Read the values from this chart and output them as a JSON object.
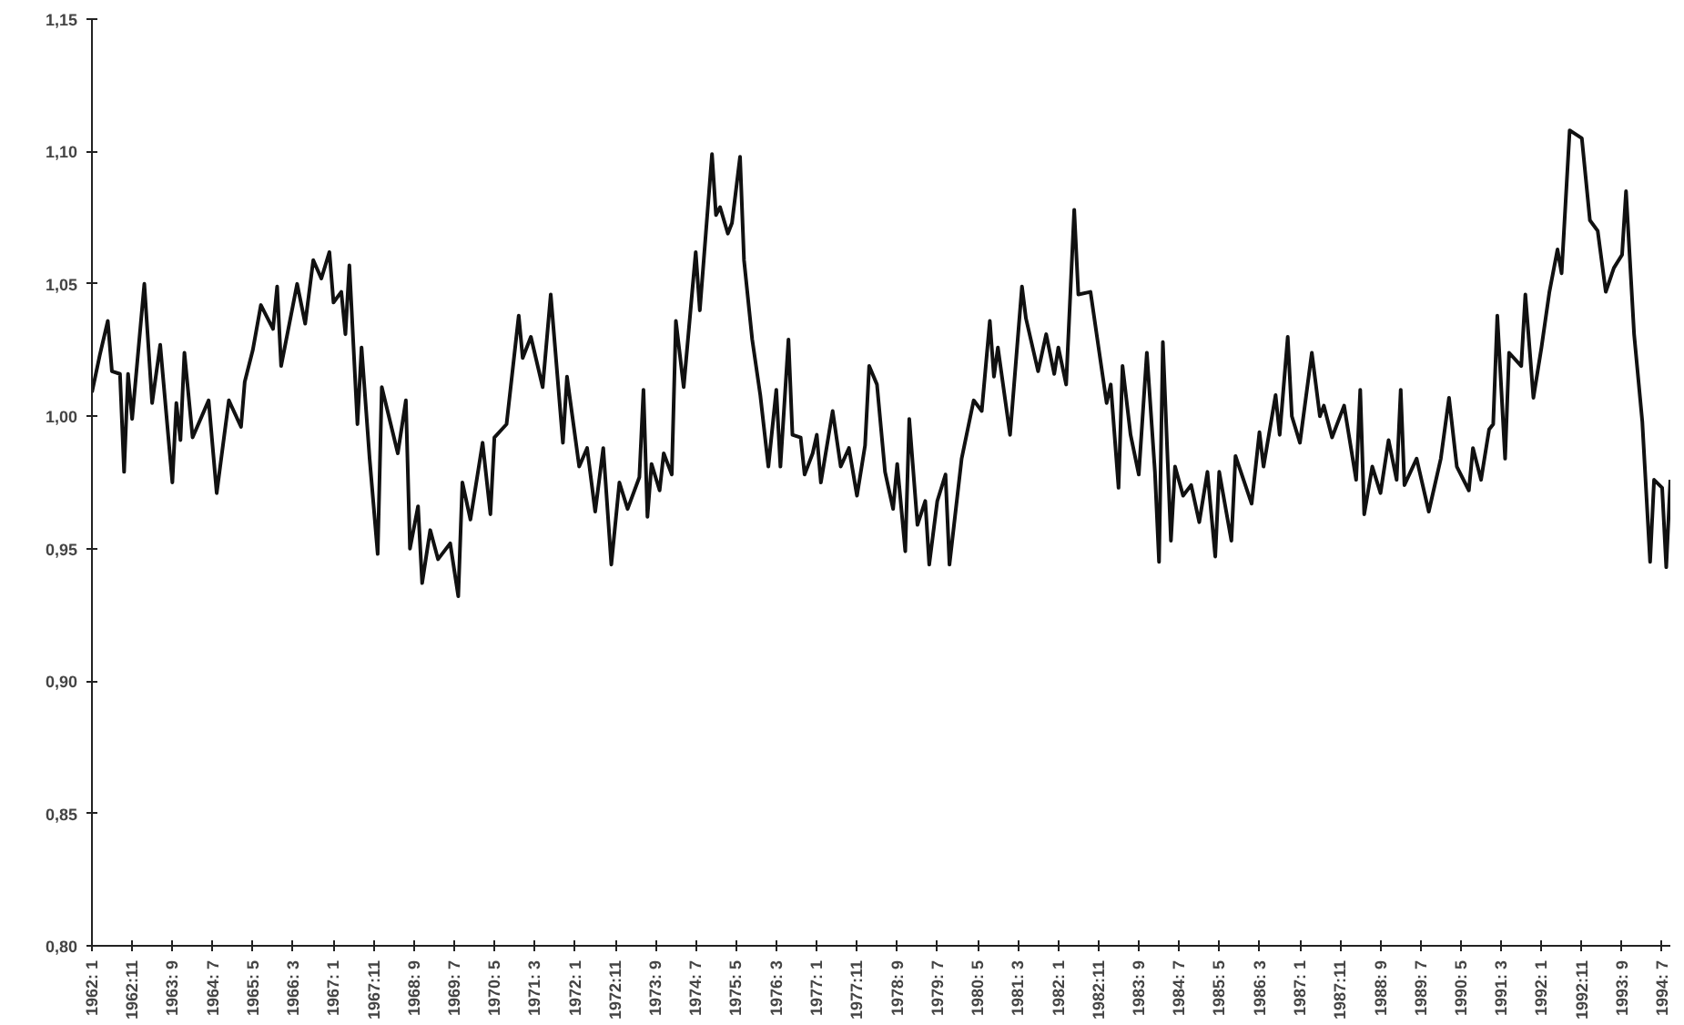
{
  "chart_data": {
    "type": "line",
    "grid": false,
    "x": [
      "1962-01",
      "1962-03",
      "1962-05",
      "1962-06",
      "1962-08",
      "1962-09",
      "1962-10",
      "1962-11",
      "1963-02",
      "1963-04",
      "1963-06",
      "1963-09",
      "1963-10",
      "1963-11",
      "1963-12",
      "1964-02",
      "1964-06",
      "1964-08",
      "1964-11",
      "1965-02",
      "1965-03",
      "1965-05",
      "1965-07",
      "1965-10",
      "1965-11",
      "1965-12",
      "1966-04",
      "1966-06",
      "1966-08",
      "1966-10",
      "1966-12",
      "1967-01",
      "1967-03",
      "1967-04",
      "1967-05",
      "1967-07",
      "1967-08",
      "1967-10",
      "1967-12",
      "1968-01",
      "1968-05",
      "1968-07",
      "1968-08",
      "1968-10",
      "1968-11",
      "1969-01",
      "1969-03",
      "1969-06",
      "1969-08",
      "1969-09",
      "1969-11",
      "1970-02",
      "1970-04",
      "1970-05",
      "1970-08",
      "1970-11",
      "1970-12",
      "1971-02",
      "1971-05",
      "1971-07",
      "1971-10",
      "1971-11",
      "1972-02",
      "1972-04",
      "1972-06",
      "1972-08",
      "1972-10",
      "1972-12",
      "1973-02",
      "1973-05",
      "1973-06",
      "1973-07",
      "1973-08",
      "1973-10",
      "1973-11",
      "1974-01",
      "1974-02",
      "1974-04",
      "1974-07",
      "1974-08",
      "1974-11",
      "1974-12",
      "1975-01",
      "1975-03",
      "1975-04",
      "1975-06",
      "1975-07",
      "1975-09",
      "1975-11",
      "1976-01",
      "1976-03",
      "1976-04",
      "1976-06",
      "1976-07",
      "1976-09",
      "1976-10",
      "1976-12",
      "1977-01",
      "1977-02",
      "1977-05",
      "1977-07",
      "1977-09",
      "1977-11",
      "1978-01",
      "1978-02",
      "1978-04",
      "1978-06",
      "1978-08",
      "1978-09",
      "1978-11",
      "1978-12",
      "1979-02",
      "1979-04",
      "1979-05",
      "1979-07",
      "1979-09",
      "1979-10",
      "1980-01",
      "1980-04",
      "1980-06",
      "1980-08",
      "1980-09",
      "1980-10",
      "1981-01",
      "1981-04",
      "1981-05",
      "1981-08",
      "1981-10",
      "1981-12",
      "1982-01",
      "1982-03",
      "1982-05",
      "1982-06",
      "1982-09",
      "1982-11",
      "1983-01",
      "1983-02",
      "1983-04",
      "1983-05",
      "1983-07",
      "1983-09",
      "1983-11",
      "1984-01",
      "1984-02",
      "1984-03",
      "1984-05",
      "1984-06",
      "1984-08",
      "1984-10",
      "1984-12",
      "1985-02",
      "1985-04",
      "1985-05",
      "1985-08",
      "1985-09",
      "1986-01",
      "1986-03",
      "1986-04",
      "1986-07",
      "1986-08",
      "1986-10",
      "1986-11",
      "1987-01",
      "1987-04",
      "1987-06",
      "1987-07",
      "1987-09",
      "1987-12",
      "1988-03",
      "1988-04",
      "1988-05",
      "1988-07",
      "1988-09",
      "1988-11",
      "1989-01",
      "1989-02",
      "1989-03",
      "1989-06",
      "1989-09",
      "1989-12",
      "1990-02",
      "1990-04",
      "1990-07",
      "1990-08",
      "1990-10",
      "1990-12",
      "1991-01",
      "1991-02",
      "1991-04",
      "1991-05",
      "1991-08",
      "1991-09",
      "1991-11",
      "1992-01",
      "1992-03",
      "1992-05",
      "1992-06",
      "1992-08",
      "1992-11",
      "1993-01",
      "1993-03",
      "1993-05",
      "1993-07",
      "1993-09",
      "1993-10",
      "1993-12",
      "1994-02",
      "1994-04",
      "1994-05",
      "1994-07",
      "1994-08",
      "1994-09"
    ],
    "series": [
      {
        "color": "#111111",
        "values": [
          1.009,
          1.023,
          1.036,
          1.017,
          1.016,
          0.979,
          1.016,
          0.999,
          1.05,
          1.005,
          1.027,
          0.975,
          1.005,
          0.991,
          1.024,
          0.992,
          1.006,
          0.971,
          1.006,
          0.996,
          1.013,
          1.025,
          1.042,
          1.033,
          1.049,
          1.019,
          1.05,
          1.035,
          1.059,
          1.052,
          1.062,
          1.043,
          1.047,
          1.031,
          1.057,
          0.997,
          1.026,
          0.984,
          0.948,
          1.011,
          0.986,
          1.006,
          0.95,
          0.966,
          0.937,
          0.957,
          0.946,
          0.952,
          0.932,
          0.975,
          0.961,
          0.99,
          0.963,
          0.992,
          0.997,
          1.038,
          1.022,
          1.03,
          1.011,
          1.046,
          0.99,
          1.015,
          0.981,
          0.988,
          0.964,
          0.988,
          0.944,
          0.975,
          0.965,
          0.977,
          1.01,
          0.962,
          0.982,
          0.972,
          0.986,
          0.978,
          1.036,
          1.011,
          1.062,
          1.04,
          1.099,
          1.076,
          1.079,
          1.069,
          1.073,
          1.098,
          1.059,
          1.029,
          1.008,
          0.981,
          1.01,
          0.981,
          1.029,
          0.993,
          0.992,
          0.978,
          0.986,
          0.993,
          0.975,
          1.002,
          0.981,
          0.988,
          0.97,
          0.989,
          1.019,
          1.012,
          0.979,
          0.965,
          0.982,
          0.949,
          0.999,
          0.959,
          0.968,
          0.944,
          0.968,
          0.978,
          0.944,
          0.984,
          1.006,
          1.002,
          1.036,
          1.015,
          1.026,
          0.993,
          1.049,
          1.037,
          1.017,
          1.031,
          1.016,
          1.026,
          1.012,
          1.078,
          1.046,
          1.047,
          1.026,
          1.005,
          1.012,
          0.973,
          1.019,
          0.993,
          0.978,
          1.024,
          0.979,
          0.945,
          1.028,
          0.953,
          0.981,
          0.97,
          0.974,
          0.96,
          0.979,
          0.947,
          0.979,
          0.953,
          0.985,
          0.967,
          0.994,
          0.981,
          1.008,
          0.993,
          1.03,
          1.0,
          0.99,
          1.024,
          1.0,
          1.004,
          0.992,
          1.004,
          0.976,
          1.01,
          0.963,
          0.981,
          0.971,
          0.991,
          0.976,
          1.01,
          0.974,
          0.984,
          0.964,
          0.984,
          1.007,
          0.981,
          0.972,
          0.988,
          0.976,
          0.995,
          0.997,
          1.038,
          0.984,
          1.024,
          1.019,
          1.046,
          1.007,
          1.026,
          1.047,
          1.063,
          1.054,
          1.108,
          1.105,
          1.074,
          1.07,
          1.047,
          1.056,
          1.061,
          1.085,
          1.031,
          0.998,
          0.945,
          0.976,
          0.973,
          0.943,
          0.976
        ]
      }
    ],
    "xlim": [
      "1962-01",
      "1994-09"
    ],
    "xticks": [
      {
        "value": "1962-01",
        "label": "1962: 1"
      },
      {
        "value": "1962-11",
        "label": "1962:11"
      },
      {
        "value": "1963-09",
        "label": "1963: 9"
      },
      {
        "value": "1964-07",
        "label": "1964: 7"
      },
      {
        "value": "1965-05",
        "label": "1965: 5"
      },
      {
        "value": "1966-03",
        "label": "1966: 3"
      },
      {
        "value": "1967-01",
        "label": "1967: 1"
      },
      {
        "value": "1967-11",
        "label": "1967:11"
      },
      {
        "value": "1968-09",
        "label": "1968: 9"
      },
      {
        "value": "1969-07",
        "label": "1969: 7"
      },
      {
        "value": "1970-05",
        "label": "1970: 5"
      },
      {
        "value": "1971-03",
        "label": "1971: 3"
      },
      {
        "value": "1972-01",
        "label": "1972: 1"
      },
      {
        "value": "1972-11",
        "label": "1972:11"
      },
      {
        "value": "1973-09",
        "label": "1973: 9"
      },
      {
        "value": "1974-07",
        "label": "1974: 7"
      },
      {
        "value": "1975-05",
        "label": "1975: 5"
      },
      {
        "value": "1976-03",
        "label": "1976: 3"
      },
      {
        "value": "1977-01",
        "label": "1977: 1"
      },
      {
        "value": "1977-11",
        "label": "1977:11"
      },
      {
        "value": "1978-09",
        "label": "1978: 9"
      },
      {
        "value": "1979-07",
        "label": "1979: 7"
      },
      {
        "value": "1980-05",
        "label": "1980: 5"
      },
      {
        "value": "1981-03",
        "label": "1981: 3"
      },
      {
        "value": "1982-01",
        "label": "1982: 1"
      },
      {
        "value": "1982-11",
        "label": "1982:11"
      },
      {
        "value": "1983-09",
        "label": "1983: 9"
      },
      {
        "value": "1984-07",
        "label": "1984: 7"
      },
      {
        "value": "1985-05",
        "label": "1985: 5"
      },
      {
        "value": "1986-03",
        "label": "1986: 3"
      },
      {
        "value": "1987-01",
        "label": "1987: 1"
      },
      {
        "value": "1987-11",
        "label": "1987:11"
      },
      {
        "value": "1988-09",
        "label": "1988: 9"
      },
      {
        "value": "1989-07",
        "label": "1989: 7"
      },
      {
        "value": "1990-05",
        "label": "1990: 5"
      },
      {
        "value": "1991-03",
        "label": "1991: 3"
      },
      {
        "value": "1992-01",
        "label": "1992: 1"
      },
      {
        "value": "1992-11",
        "label": "1992:11"
      },
      {
        "value": "1993-09",
        "label": "1993: 9"
      },
      {
        "value": "1994-07",
        "label": "1994: 7"
      }
    ],
    "ylim": [
      0.8,
      1.15
    ],
    "yticks": [
      {
        "value": 0.8,
        "label": "0,80"
      },
      {
        "value": 0.85,
        "label": "0,85"
      },
      {
        "value": 0.9,
        "label": "0,90"
      },
      {
        "value": 0.95,
        "label": "0,95"
      },
      {
        "value": 1.0,
        "label": "1,00"
      },
      {
        "value": 1.05,
        "label": "1,05"
      },
      {
        "value": 1.1,
        "label": "1,10"
      },
      {
        "value": 1.15,
        "label": "1,15"
      }
    ]
  }
}
